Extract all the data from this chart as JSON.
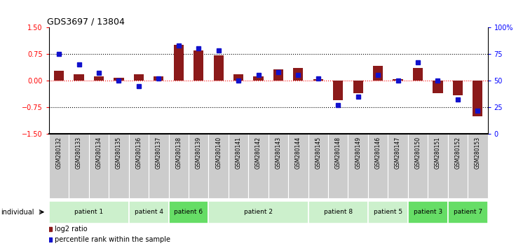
{
  "title": "GDS3697 / 13804",
  "samples": [
    "GSM280132",
    "GSM280133",
    "GSM280134",
    "GSM280135",
    "GSM280136",
    "GSM280137",
    "GSM280138",
    "GSM280139",
    "GSM280140",
    "GSM280141",
    "GSM280142",
    "GSM280143",
    "GSM280144",
    "GSM280145",
    "GSM280148",
    "GSM280149",
    "GSM280146",
    "GSM280147",
    "GSM280150",
    "GSM280151",
    "GSM280152",
    "GSM280153"
  ],
  "log2_ratio": [
    0.28,
    0.18,
    0.12,
    0.08,
    0.18,
    0.12,
    1.0,
    0.85,
    0.72,
    0.18,
    0.12,
    0.32,
    0.35,
    0.05,
    -0.55,
    -0.35,
    0.42,
    0.05,
    0.35,
    -0.35,
    -0.42,
    -1.0
  ],
  "percentile": [
    75,
    65,
    57,
    50,
    45,
    52,
    83,
    80,
    78,
    50,
    55,
    58,
    55,
    52,
    27,
    35,
    55,
    50,
    67,
    50,
    32,
    22
  ],
  "patients": [
    {
      "label": "patient 1",
      "start": 0,
      "end": 4,
      "color": "#ccf0cc"
    },
    {
      "label": "patient 4",
      "start": 4,
      "end": 6,
      "color": "#ccf0cc"
    },
    {
      "label": "patient 6",
      "start": 6,
      "end": 8,
      "color": "#66dd66"
    },
    {
      "label": "patient 2",
      "start": 8,
      "end": 13,
      "color": "#ccf0cc"
    },
    {
      "label": "patient 8",
      "start": 13,
      "end": 16,
      "color": "#ccf0cc"
    },
    {
      "label": "patient 5",
      "start": 16,
      "end": 18,
      "color": "#ccf0cc"
    },
    {
      "label": "patient 3",
      "start": 18,
      "end": 20,
      "color": "#66dd66"
    },
    {
      "label": "patient 7",
      "start": 20,
      "end": 22,
      "color": "#66dd66"
    }
  ],
  "ylim_left": [
    -1.5,
    1.5
  ],
  "ylim_right": [
    0,
    100
  ],
  "yticks_left": [
    -1.5,
    -0.75,
    0.0,
    0.75,
    1.5
  ],
  "yticks_right": [
    0,
    25,
    50,
    75,
    100
  ],
  "ytick_labels_right": [
    "0",
    "25",
    "50",
    "75",
    "100%"
  ],
  "bar_color": "#8b1a1a",
  "dot_color": "#1111cc",
  "legend_bar": "log2 ratio",
  "legend_dot": "percentile rank within the sample",
  "sample_bg": "#cccccc",
  "bar_width": 0.5
}
